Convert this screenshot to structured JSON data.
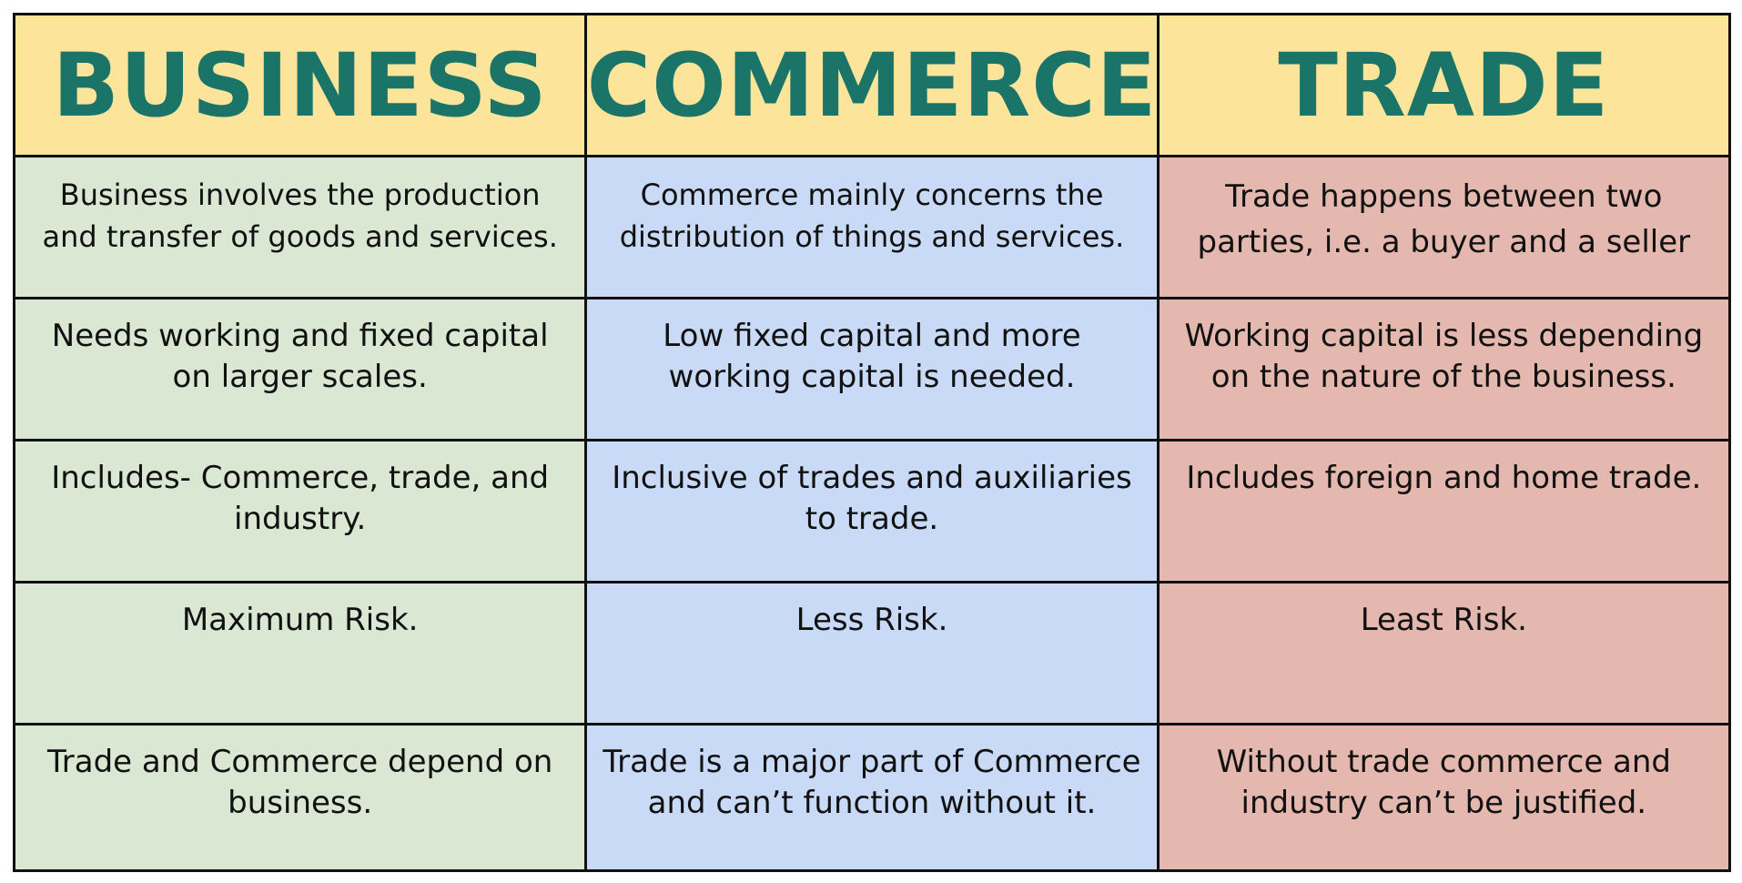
{
  "headers": {
    "business": "BUSINESS",
    "commerce": "COMMERCE",
    "trade": "TRADE"
  },
  "rows": [
    {
      "business": "Business involves the production and transfer of goods and services.",
      "commerce": "Commerce mainly concerns the distribution of things and services.",
      "trade": "Trade happens between two parties, i.e. a buyer and a seller"
    },
    {
      "business": "Needs working and fixed capital on larger scales.",
      "commerce": "Low fixed capital and more working capital is needed.",
      "trade": "Working capital is less depending on the nature of the business."
    },
    {
      "business": "Includes- Commerce, trade, and industry.",
      "commerce": "Inclusive of trades and auxiliaries to trade.",
      "trade": "Includes foreign and home trade."
    },
    {
      "business": "Maximum Risk.",
      "commerce": "Less Risk.",
      "trade": "Least Risk."
    },
    {
      "business": "Trade and Commerce depend on business.",
      "commerce": "Trade is a major part of Commerce and can’t function without it.",
      "trade": "Without trade commerce and industry can’t be justified."
    }
  ],
  "colors": {
    "header_bg": "#fde49b",
    "header_text": "#1a7568",
    "business_bg": "#d9e7d3",
    "commerce_bg": "#c9daf6",
    "trade_bg": "#e5b8af",
    "border": "#111111"
  }
}
